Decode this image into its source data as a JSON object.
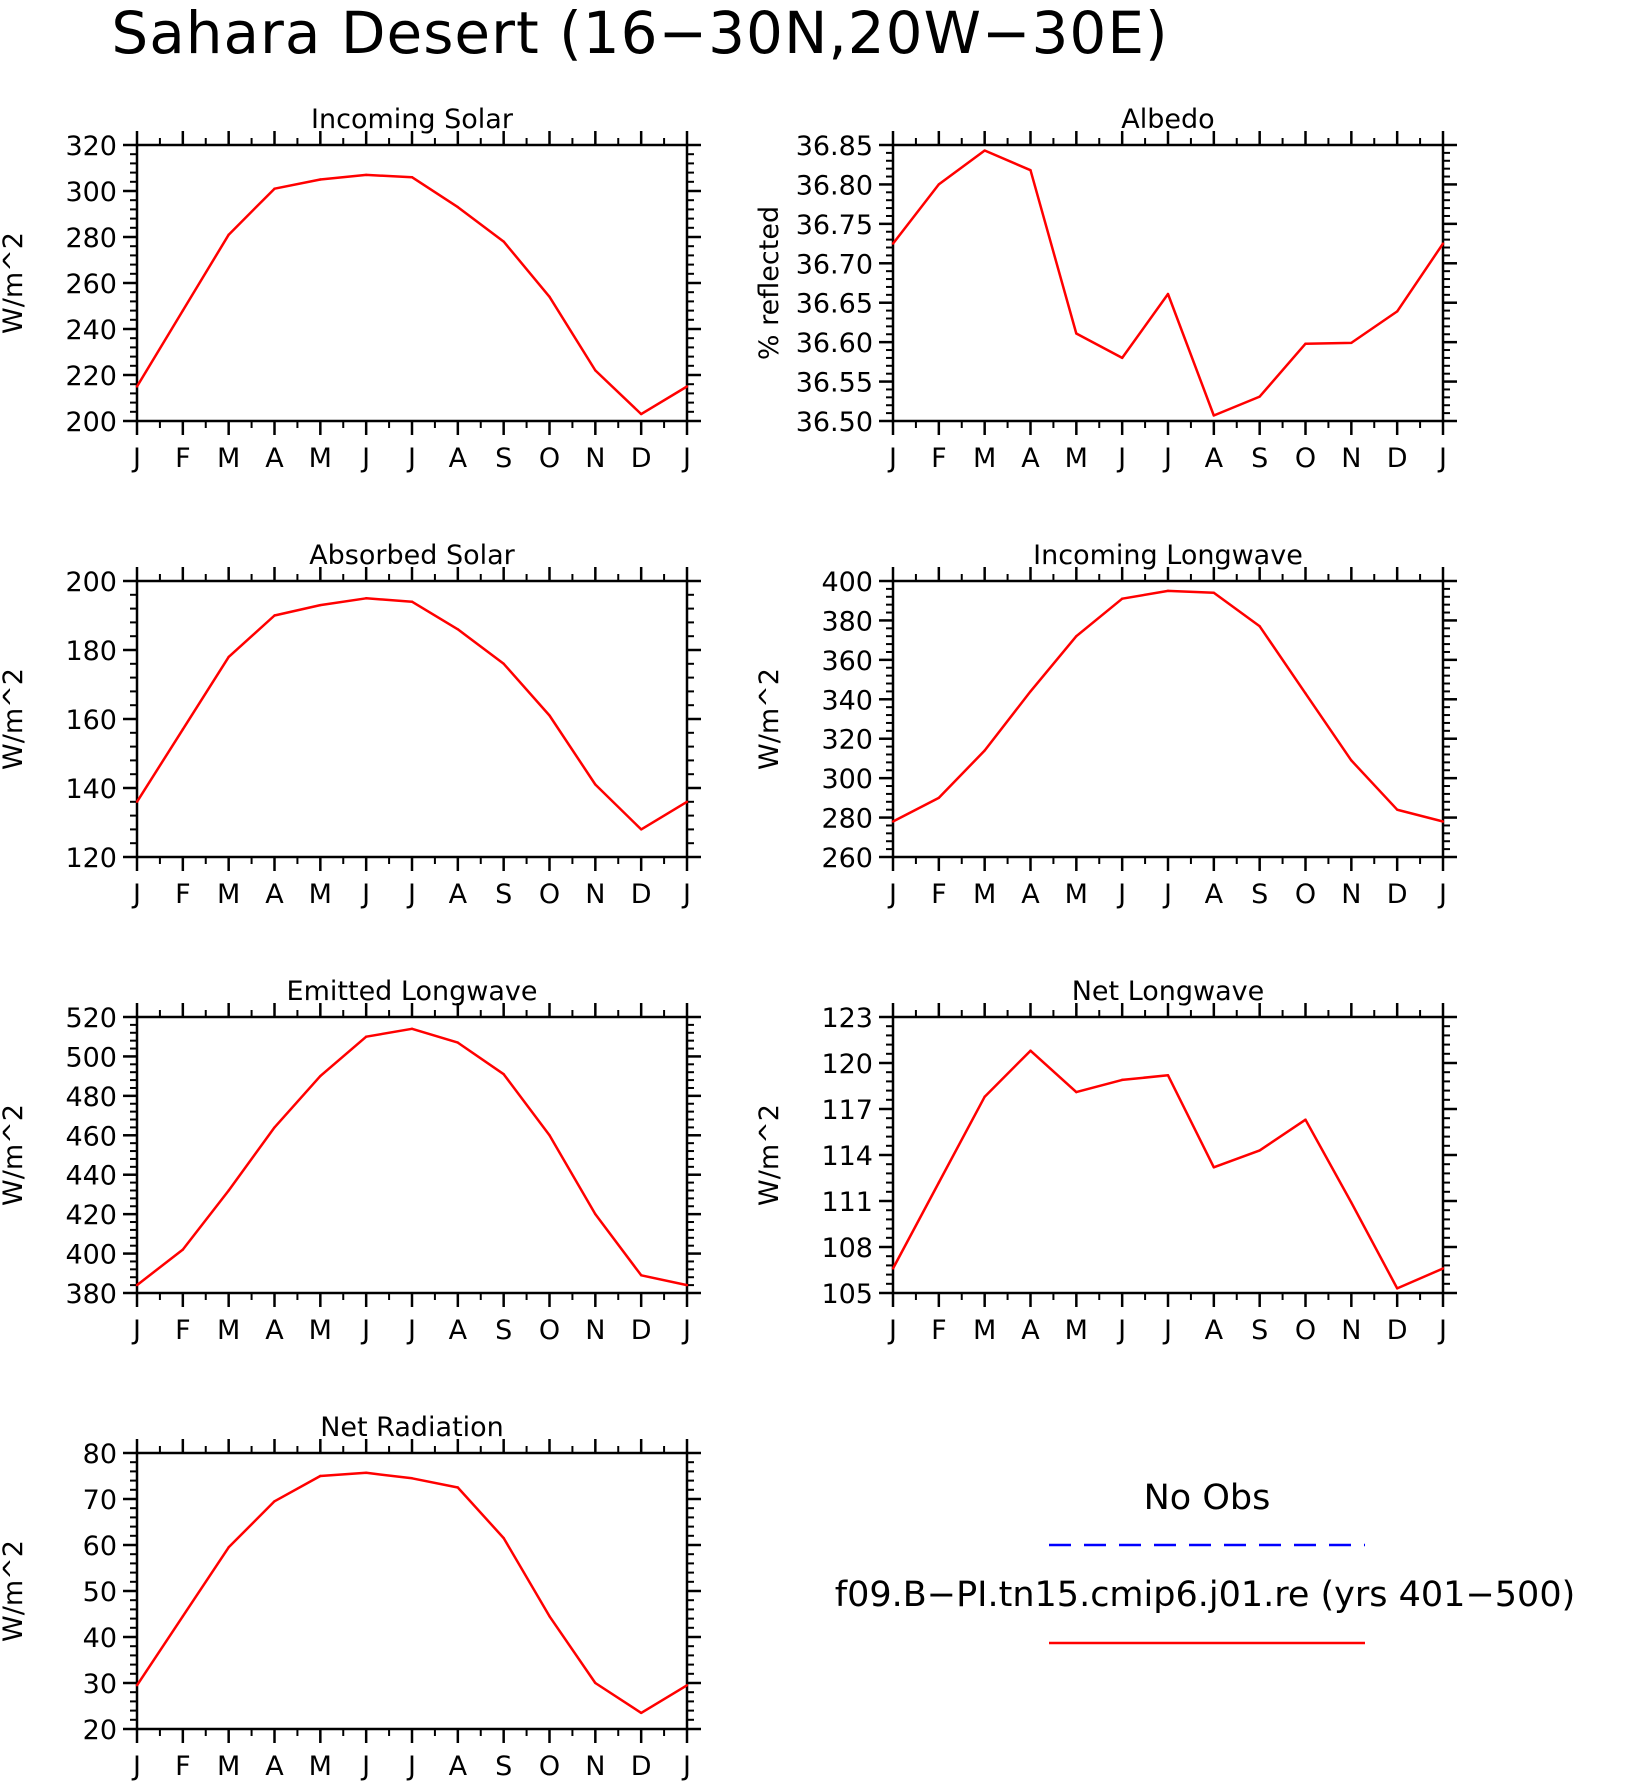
{
  "figure": {
    "title": "Sahara Desert (16−30N,20W−30E)",
    "line_color": "#ff0000",
    "obs_color": "#0000ff"
  },
  "legend": {
    "obs_label": "No Obs",
    "model_label": "f09.B−PI.tn15.cmip6.j01.re (yrs 401−500)"
  },
  "chart_data": [
    {
      "type": "line",
      "title": "Incoming Solar",
      "ylabel": "W/m^2",
      "ylim": [
        200,
        320
      ],
      "yticks": [
        200,
        220,
        240,
        260,
        280,
        300,
        320
      ],
      "ytick_labels": [
        "200",
        "220",
        "240",
        "260",
        "280",
        "300",
        "320"
      ],
      "categories": [
        "J",
        "F",
        "M",
        "A",
        "M",
        "J",
        "J",
        "A",
        "S",
        "O",
        "N",
        "D",
        "J"
      ],
      "series": [
        {
          "values": [
            215,
            248,
            281,
            301,
            305,
            307,
            306,
            293,
            278,
            254,
            222,
            203,
            215
          ]
        }
      ]
    },
    {
      "type": "line",
      "title": "Albedo",
      "ylabel": "% reflected",
      "ylim": [
        36.5,
        36.85
      ],
      "yticks": [
        36.5,
        36.55,
        36.6,
        36.65,
        36.7,
        36.75,
        36.8,
        36.85
      ],
      "ytick_labels": [
        "36.50",
        "36.55",
        "36.60",
        "36.65",
        "36.70",
        "36.75",
        "36.80",
        "36.85"
      ],
      "categories": [
        "J",
        "F",
        "M",
        "A",
        "M",
        "J",
        "J",
        "A",
        "S",
        "O",
        "N",
        "D",
        "J"
      ],
      "series": [
        {
          "values": [
            36.725,
            36.8,
            36.843,
            36.818,
            36.611,
            36.58,
            36.661,
            36.507,
            36.531,
            36.598,
            36.599,
            36.639,
            36.725
          ]
        }
      ]
    },
    {
      "type": "line",
      "title": "Absorbed Solar",
      "ylabel": "W/m^2",
      "ylim": [
        120,
        200
      ],
      "yticks": [
        120,
        140,
        160,
        180,
        200
      ],
      "ytick_labels": [
        "120",
        "140",
        "160",
        "180",
        "200"
      ],
      "categories": [
        "J",
        "F",
        "M",
        "A",
        "M",
        "J",
        "J",
        "A",
        "S",
        "O",
        "N",
        "D",
        "J"
      ],
      "series": [
        {
          "values": [
            136,
            157,
            178,
            190,
            193,
            195,
            194,
            186,
            176,
            161,
            141,
            128,
            136
          ]
        }
      ]
    },
    {
      "type": "line",
      "title": "Incoming Longwave",
      "ylabel": "W/m^2",
      "ylim": [
        260,
        400
      ],
      "yticks": [
        260,
        280,
        300,
        320,
        340,
        360,
        380,
        400
      ],
      "ytick_labels": [
        "260",
        "280",
        "300",
        "320",
        "340",
        "360",
        "380",
        "400"
      ],
      "categories": [
        "J",
        "F",
        "M",
        "A",
        "M",
        "J",
        "J",
        "A",
        "S",
        "O",
        "N",
        "D",
        "J"
      ],
      "series": [
        {
          "values": [
            278,
            290,
            314,
            344,
            372,
            391,
            395,
            394,
            377,
            343,
            309,
            284,
            278
          ]
        }
      ]
    },
    {
      "type": "line",
      "title": "Emitted Longwave",
      "ylabel": "W/m^2",
      "ylim": [
        380,
        520
      ],
      "yticks": [
        380,
        400,
        420,
        440,
        460,
        480,
        500,
        520
      ],
      "ytick_labels": [
        "380",
        "400",
        "420",
        "440",
        "460",
        "480",
        "500",
        "520"
      ],
      "categories": [
        "J",
        "F",
        "M",
        "A",
        "M",
        "J",
        "J",
        "A",
        "S",
        "O",
        "N",
        "D",
        "J"
      ],
      "series": [
        {
          "values": [
            384,
            402,
            432,
            464,
            490,
            510,
            514,
            507,
            491,
            460,
            420,
            389,
            384
          ]
        }
      ]
    },
    {
      "type": "line",
      "title": "Net Longwave",
      "ylabel": "W/m^2",
      "ylim": [
        105,
        123
      ],
      "yticks": [
        105,
        108,
        111,
        114,
        117,
        120,
        123
      ],
      "ytick_labels": [
        "105",
        "108",
        "111",
        "114",
        "117",
        "120",
        "123"
      ],
      "categories": [
        "J",
        "F",
        "M",
        "A",
        "M",
        "J",
        "J",
        "A",
        "S",
        "O",
        "N",
        "D",
        "J"
      ],
      "series": [
        {
          "values": [
            106.6,
            112.2,
            117.8,
            120.8,
            118.1,
            118.9,
            119.2,
            113.2,
            114.3,
            116.3,
            110.9,
            105.3,
            106.6
          ]
        }
      ]
    },
    {
      "type": "line",
      "title": "Net Radiation",
      "ylabel": "W/m^2",
      "ylim": [
        20,
        80
      ],
      "yticks": [
        20,
        30,
        40,
        50,
        60,
        70,
        80
      ],
      "ytick_labels": [
        "20",
        "30",
        "40",
        "50",
        "60",
        "70",
        "80"
      ],
      "categories": [
        "J",
        "F",
        "M",
        "A",
        "M",
        "J",
        "J",
        "A",
        "S",
        "O",
        "N",
        "D",
        "J"
      ],
      "series": [
        {
          "values": [
            29.5,
            44.5,
            59.5,
            69.5,
            75,
            75.7,
            74.5,
            72.5,
            61.5,
            44.5,
            30,
            23.5,
            29.5
          ]
        }
      ]
    }
  ]
}
